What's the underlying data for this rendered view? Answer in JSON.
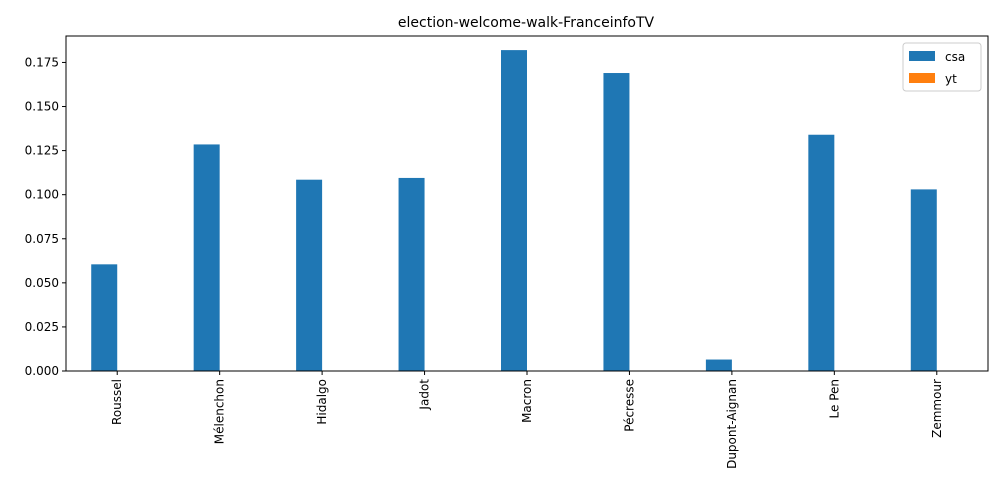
{
  "chart_data": {
    "type": "bar",
    "title": "election-welcome-walk-FranceinfoTV",
    "xlabel": "",
    "ylabel": "",
    "categories": [
      "Roussel",
      "Mélenchon",
      "Hidalgo",
      "Jadot",
      "Macron",
      "Pécresse",
      "Dupont-Aignan",
      "Le Pen",
      "Zemmour"
    ],
    "series": [
      {
        "name": "csa",
        "color": "#1f77b4",
        "values": [
          0.0605,
          0.1285,
          0.1085,
          0.1095,
          0.182,
          0.169,
          0.0065,
          0.134,
          0.103
        ]
      },
      {
        "name": "yt",
        "color": "#ff7f0e",
        "values": [
          0,
          0,
          0,
          0,
          0,
          0,
          0,
          0,
          0
        ]
      }
    ],
    "ylim": [
      0,
      0.19
    ],
    "yticks": [
      "0.000",
      "0.025",
      "0.050",
      "0.075",
      "0.100",
      "0.125",
      "0.150",
      "0.175"
    ],
    "legend_position": "top-right",
    "grid": false
  }
}
